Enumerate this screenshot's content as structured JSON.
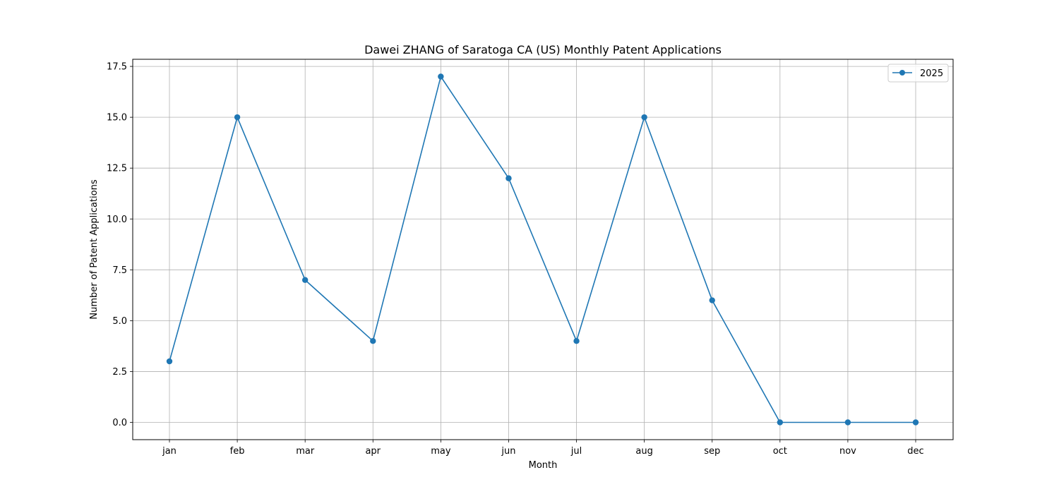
{
  "chart_data": {
    "type": "line",
    "title": "Dawei ZHANG of Saratoga CA (US) Monthly Patent Applications",
    "xlabel": "Month",
    "ylabel": "Number of Patent Applications",
    "categories": [
      "jan",
      "feb",
      "mar",
      "apr",
      "may",
      "jun",
      "jul",
      "aug",
      "sep",
      "oct",
      "nov",
      "dec"
    ],
    "series": [
      {
        "name": "2025",
        "values": [
          3,
          15,
          7,
          4,
          17,
          12,
          4,
          15,
          6,
          0,
          0,
          0
        ],
        "color": "#1f77b4",
        "marker": "circle"
      }
    ],
    "ylim": [
      -0.85,
      17.85
    ],
    "yticks": [
      0.0,
      2.5,
      5.0,
      7.5,
      10.0,
      12.5,
      15.0,
      17.5
    ],
    "ytick_labels": [
      "0.0",
      "2.5",
      "5.0",
      "7.5",
      "10.0",
      "12.5",
      "15.0",
      "17.5"
    ],
    "grid": true,
    "legend_position": "top-right"
  }
}
